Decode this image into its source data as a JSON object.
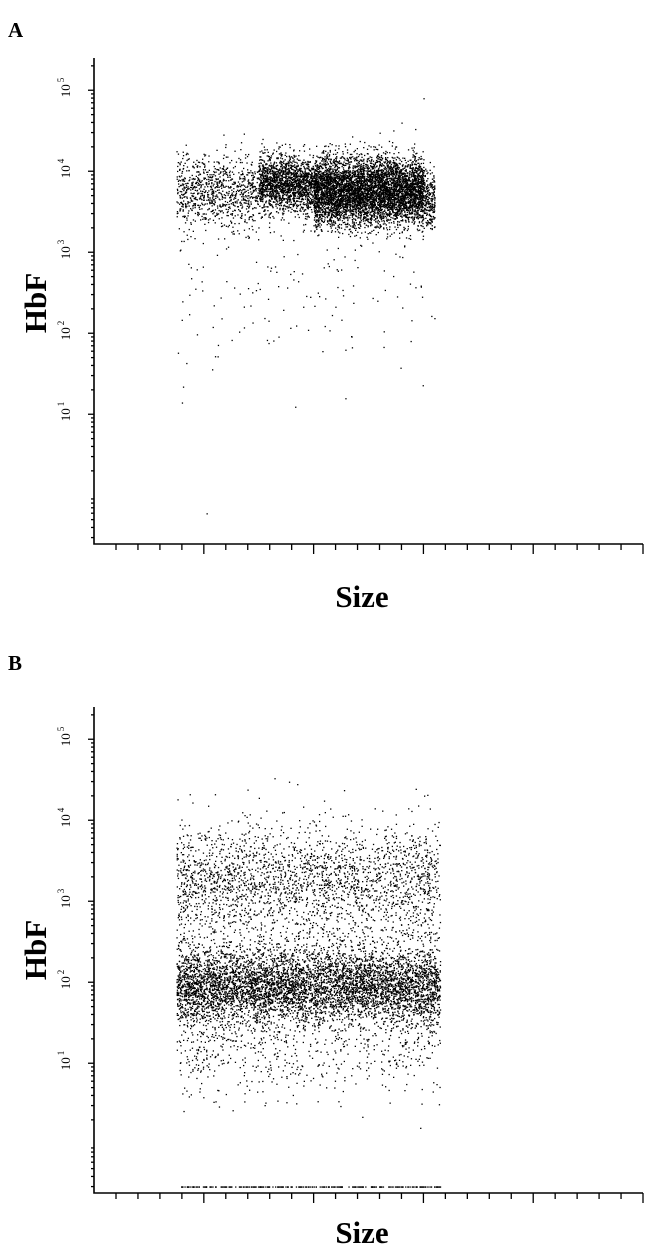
{
  "chart_data": [
    {
      "panel": "A",
      "type": "scatter",
      "xlabel": "Size",
      "ylabel": "HbF",
      "yscale": "log",
      "ylim": [
        0.25,
        250000
      ],
      "xlim": [
        0,
        1000
      ],
      "y_ticks": [
        {
          "base": "10",
          "exp": "1",
          "value": 10
        },
        {
          "base": "10",
          "exp": "2",
          "value": 100
        },
        {
          "base": "10",
          "exp": "3",
          "value": 1000
        },
        {
          "base": "10",
          "exp": "4",
          "value": 10000
        },
        {
          "base": "10",
          "exp": "5",
          "value": 100000
        }
      ],
      "x_ticks_labeled": false,
      "grid": false,
      "dot_color": "#000000",
      "populations": [
        {
          "name": "",
          "n": 5200,
          "x_range": [
            300,
            600
          ],
          "log10_y_center": 3.85,
          "log10_y_spread": 0.18
        },
        {
          "name": "",
          "n": 2400,
          "x_range": [
            400,
            620
          ],
          "log10_y_center": 3.62,
          "log10_y_spread": 0.17
        },
        {
          "name": "",
          "n": 900,
          "x_range": [
            150,
            300
          ],
          "log10_y_center": 3.75,
          "log10_y_spread": 0.22
        },
        {
          "name": "",
          "n": 170,
          "x_range": [
            150,
            620
          ],
          "log10_y_center": 2.6,
          "log10_y_spread": 0.55
        }
      ],
      "outliers": [
        {
          "x": 205,
          "y": 0.6
        },
        {
          "x": 160,
          "y": 14
        },
        {
          "x": 162,
          "y": 22
        },
        {
          "x": 168,
          "y": 43
        },
        {
          "x": 215,
          "y": 36
        },
        {
          "x": 225,
          "y": 52
        },
        {
          "x": 600,
          "y": 80000
        },
        {
          "x": 560,
          "y": 40000
        },
        {
          "x": 545,
          "y": 32000
        },
        {
          "x": 520,
          "y": 30000
        },
        {
          "x": 470,
          "y": 27000
        }
      ]
    },
    {
      "panel": "B",
      "type": "scatter",
      "xlabel": "Size",
      "ylabel": "HbF",
      "yscale": "log",
      "ylim": [
        0.25,
        250000
      ],
      "xlim": [
        0,
        1000
      ],
      "y_ticks": [
        {
          "base": "10",
          "exp": "1",
          "value": 10
        },
        {
          "base": "10",
          "exp": "2",
          "value": 100
        },
        {
          "base": "10",
          "exp": "3",
          "value": 1000
        },
        {
          "base": "10",
          "exp": "4",
          "value": 10000
        },
        {
          "base": "10",
          "exp": "5",
          "value": 100000
        }
      ],
      "x_ticks_labeled": false,
      "grid": false,
      "dot_color": "#000000",
      "populations": [
        {
          "name": "",
          "n": 5400,
          "x_range": [
            150,
            630
          ],
          "log10_y_center": 1.95,
          "log10_y_spread": 0.22
        },
        {
          "name": "",
          "n": 1700,
          "x_range": [
            150,
            630
          ],
          "log10_y_center": 3.35,
          "log10_y_spread": 0.3
        },
        {
          "name": "",
          "n": 1300,
          "x_range": [
            150,
            630
          ],
          "log10_y_center": 2.6,
          "log10_y_spread": 0.55
        },
        {
          "name": "",
          "n": 650,
          "x_range": [
            150,
            630
          ],
          "log10_y_center": 1.2,
          "log10_y_spread": 0.32
        },
        {
          "name": "",
          "n": 260,
          "x_range": [
            150,
            630
          ],
          "log10_y_center": -0.52,
          "log10_y_spread": 0
        }
      ],
      "outliers": [
        {
          "x": 355,
          "y": 30000
        },
        {
          "x": 370,
          "y": 28000
        },
        {
          "x": 300,
          "y": 19000
        },
        {
          "x": 220,
          "y": 21000
        },
        {
          "x": 430,
          "y": 14000
        },
        {
          "x": 250,
          "y": 10000
        }
      ]
    }
  ],
  "panels": [
    {
      "label": "A"
    },
    {
      "label": "B"
    }
  ]
}
